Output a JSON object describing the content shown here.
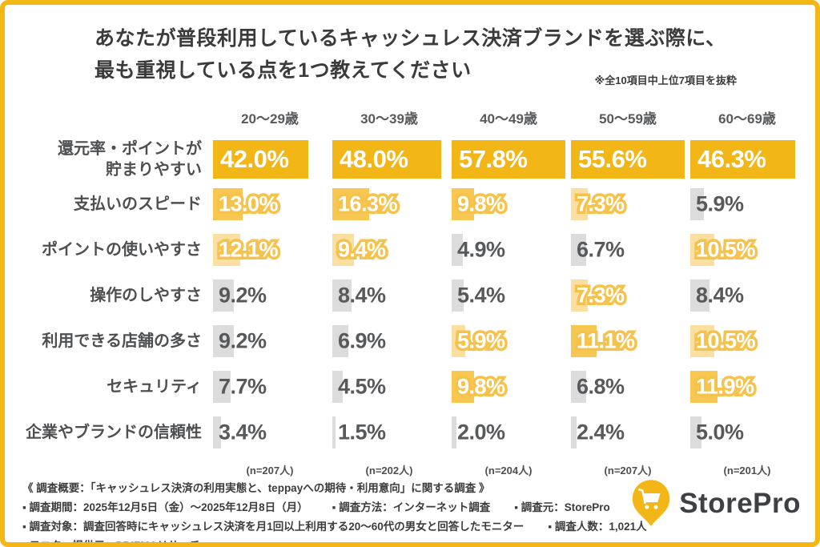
{
  "header": {
    "title_line1": "あなたが普段利用しているキャッシュレス決済ブランドを選ぶ際に、",
    "title_line2": "最も重視している点を1つ教えてください",
    "note": "※全10項目中上位7項目を抜粋"
  },
  "chart_data": {
    "type": "bar",
    "orientation": "horizontal",
    "unit": "%",
    "categories": [
      "20〜29歳",
      "30〜39歳",
      "40〜49歳",
      "50〜59歳",
      "60〜69歳"
    ],
    "rows": [
      {
        "label": "還元率・ポイントが貯まりやすい",
        "label_lines": [
          "還元率・ポイントが",
          "貯まりやすい"
        ],
        "values": [
          42.0,
          48.0,
          57.8,
          55.6,
          46.3
        ],
        "highlight": [
          1,
          1,
          1,
          1,
          1
        ]
      },
      {
        "label": "支払いのスピード",
        "label_lines": [
          "支払いのスピード"
        ],
        "values": [
          13.0,
          16.3,
          9.8,
          7.3,
          5.9
        ],
        "highlight": [
          2,
          2,
          2,
          3,
          0
        ]
      },
      {
        "label": "ポイントの使いやすさ",
        "label_lines": [
          "ポイントの使いやすさ"
        ],
        "values": [
          12.1,
          9.4,
          4.9,
          6.7,
          10.5
        ],
        "highlight": [
          3,
          3,
          0,
          0,
          3
        ]
      },
      {
        "label": "操作のしやすさ",
        "label_lines": [
          "操作のしやすさ"
        ],
        "values": [
          9.2,
          8.4,
          5.4,
          7.3,
          8.4
        ],
        "highlight": [
          0,
          0,
          0,
          3,
          0
        ]
      },
      {
        "label": "利用できる店舗の多さ",
        "label_lines": [
          "利用できる店舗の多さ"
        ],
        "values": [
          9.2,
          6.9,
          5.9,
          11.1,
          10.5
        ],
        "highlight": [
          0,
          0,
          3,
          2,
          3
        ]
      },
      {
        "label": "セキュリティ",
        "label_lines": [
          "セキュリティ"
        ],
        "values": [
          7.7,
          4.5,
          9.8,
          6.8,
          11.9
        ],
        "highlight": [
          0,
          0,
          2,
          0,
          2
        ]
      },
      {
        "label": "企業やブランドの信頼性",
        "label_lines": [
          "企業やブランドの信頼性"
        ],
        "values": [
          3.4,
          1.5,
          2.0,
          2.4,
          5.0
        ],
        "highlight": [
          0,
          0,
          0,
          0,
          0
        ]
      }
    ],
    "sample_sizes": [
      "(n=207人)",
      "(n=202人)",
      "(n=204人)",
      "(n=207人)",
      "(n=201人)"
    ],
    "axis_max_percent": 50,
    "highlight_legend": {
      "0": "not highlighted (gray)",
      "1": "top value in column (deep gold)",
      "2": "2nd value in column (medium gold)",
      "3": "3rd value in column (light gold)"
    },
    "grid": false,
    "legend_position": "none"
  },
  "footer": {
    "lines": [
      [
        "《 調査概要：「キャッシュレス決済の利用実態と、teppayへの期待・利用意向」に関する調査 》"
      ],
      [
        "▪ 調査期間：2025年12月5日（金）〜2025年12月8日（月）",
        "▪ 調査方法：インターネット調査",
        "▪ 調査元：StorePro"
      ],
      [
        "▪ 調査対象：調査回答時にキャッシュレス決済を月1回以上利用する20〜60代の男女と回答したモニター",
        "▪ 調査人数：1,021人"
      ],
      [
        "▪ モニター提供元：PRIZMAリサーチ"
      ]
    ]
  },
  "logo": {
    "text": "StorePro",
    "icon": "map-pin-cart-icon"
  },
  "colors": {
    "frame_gold": "#F3B617",
    "bar_rank1": "#F3B617",
    "bar_rank2": "#F8C751",
    "bar_rank3": "#FBDFA0",
    "bar_gray": "#DCDCDC",
    "value_outline_gold": "#F5C34B",
    "text_dark": "#3B3B3B",
    "text_gray": "#58595B",
    "white": "#FFFFFF"
  }
}
